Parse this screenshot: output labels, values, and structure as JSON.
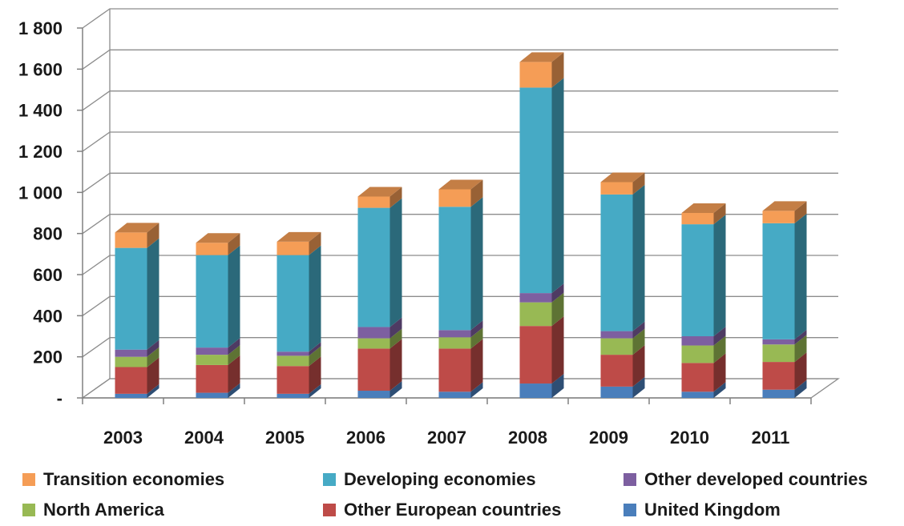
{
  "chart_data": {
    "type": "bar",
    "stacked": true,
    "three_d": true,
    "title": "",
    "xlabel": "",
    "ylabel": "",
    "categories": [
      "2003",
      "2004",
      "2005",
      "2006",
      "2007",
      "2008",
      "2009",
      "2010",
      "2011"
    ],
    "ylim": [
      0,
      1800
    ],
    "yticks": [
      0,
      200,
      400,
      600,
      800,
      1000,
      1200,
      1400,
      1600,
      1800
    ],
    "ytick_labels": [
      "-",
      "200",
      "400",
      "600",
      "800",
      "1 000",
      "1 200",
      "1 400",
      "1 600",
      "1 800"
    ],
    "grid": true,
    "legend_position": "bottom",
    "series": [
      {
        "name": "United Kingdom",
        "color": "#4a7ebb",
        "values": [
          20,
          25,
          20,
          35,
          30,
          70,
          55,
          30,
          40
        ]
      },
      {
        "name": "Other European countries",
        "color": "#be4b48",
        "values": [
          130,
          135,
          135,
          205,
          210,
          280,
          155,
          140,
          135
        ]
      },
      {
        "name": "North America",
        "color": "#98b954",
        "values": [
          50,
          50,
          50,
          50,
          55,
          115,
          80,
          85,
          85
        ]
      },
      {
        "name": "Other developed countries",
        "color": "#7d5fa0",
        "values": [
          35,
          35,
          20,
          55,
          35,
          45,
          35,
          45,
          25
        ]
      },
      {
        "name": "Developing economies",
        "color": "#46aac5",
        "values": [
          495,
          450,
          470,
          580,
          600,
          1000,
          665,
          545,
          565
        ]
      },
      {
        "name": "Transition economies",
        "color": "#f59d56",
        "values": [
          75,
          60,
          65,
          55,
          85,
          125,
          60,
          55,
          60
        ]
      }
    ]
  },
  "legend": {
    "items": [
      {
        "label": "Transition economies",
        "color": "#f59d56"
      },
      {
        "label": "Developing economies",
        "color": "#46aac5"
      },
      {
        "label": "Other developed countries",
        "color": "#7d5fa0"
      },
      {
        "label": "North America",
        "color": "#98b954"
      },
      {
        "label": "Other European countries",
        "color": "#be4b48"
      },
      {
        "label": "United Kingdom",
        "color": "#4a7ebb"
      }
    ]
  }
}
